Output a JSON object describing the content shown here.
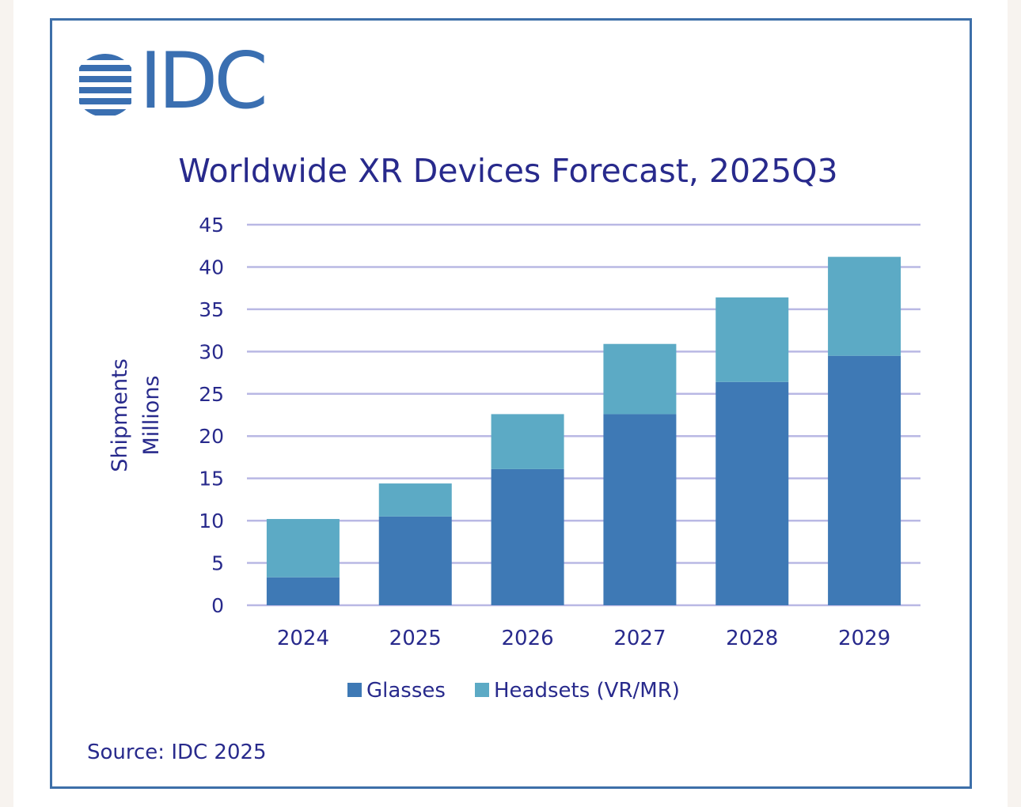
{
  "logo": {
    "text": "IDC",
    "icon": "idc-globe-icon"
  },
  "source": "Source: IDC 2025",
  "colors": {
    "glasses": "#3e79b5",
    "headsets": "#5caac5",
    "text": "#282a8c",
    "grid": "#b9b8e4",
    "frame": "#3d6fa9"
  },
  "chart_data": {
    "type": "bar",
    "stacked": true,
    "title": "Worldwide XR Devices Forecast, 2025Q3",
    "ylabel_lines": [
      "Shipments",
      "Millions"
    ],
    "xlabel": "",
    "categories": [
      "2024",
      "2025",
      "2026",
      "2027",
      "2028",
      "2029"
    ],
    "series": [
      {
        "name": "Glasses",
        "values": [
          3.3,
          10.5,
          16.1,
          22.6,
          26.4,
          29.5
        ]
      },
      {
        "name": "Headsets (VR/MR)",
        "values": [
          6.9,
          3.9,
          6.5,
          8.3,
          10.0,
          11.7
        ]
      }
    ],
    "ylim": [
      0,
      45
    ],
    "yticks": [
      0,
      5,
      10,
      15,
      20,
      25,
      30,
      35,
      40,
      45
    ],
    "grid": true,
    "legend": "bottom-center"
  }
}
